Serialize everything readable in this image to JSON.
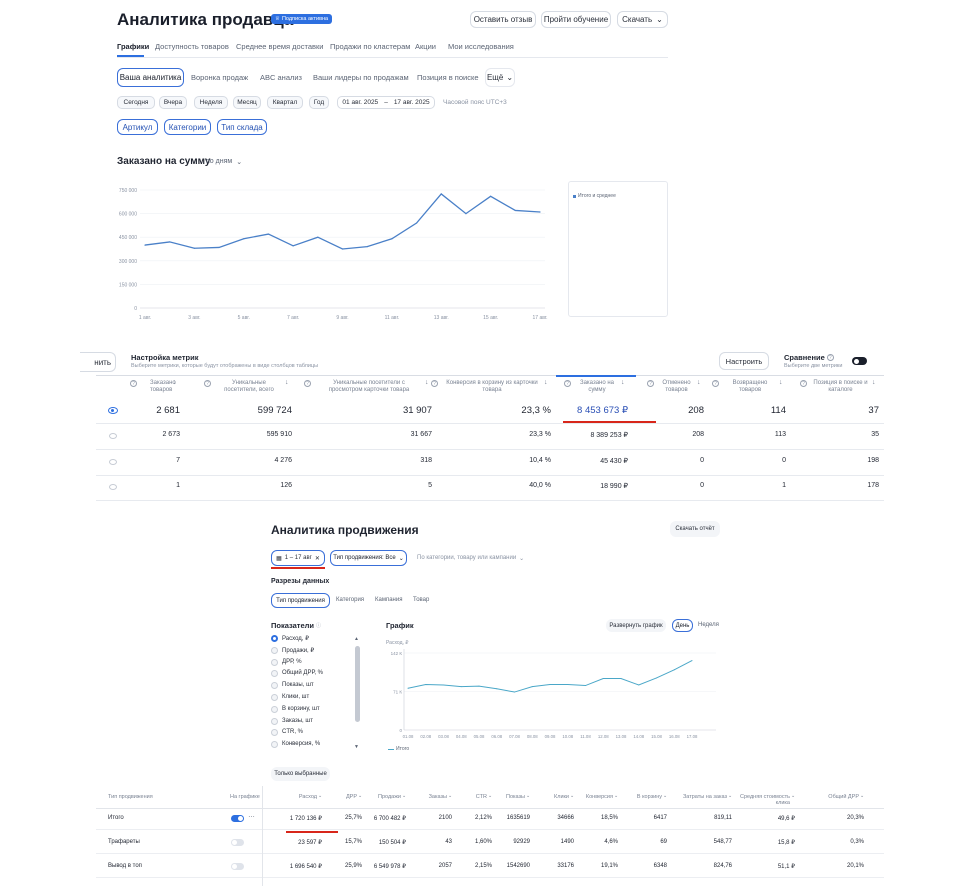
{
  "header": {
    "title": "Аналитика продавца",
    "badge": "Подписка активна",
    "leave_feedback": "Оставить отзыв",
    "take_training": "Пройти обучение",
    "download": "Скачать"
  },
  "top_tabs": [
    "Графики",
    "Доступность товаров",
    "Среднее время доставки",
    "Продажи по кластерам",
    "Акции",
    "Мои исследования"
  ],
  "sub_tabs": [
    "Ваша аналитика",
    "Воронка продаж",
    "ABC анализ",
    "Ваши лидеры по продажам",
    "Позиция в поиске",
    "Ещё"
  ],
  "period_chips": [
    "Сегодня",
    "Вчера",
    "Неделя",
    "Месяц",
    "Квартал",
    "Год"
  ],
  "date_from": "01 авг. 2025",
  "date_to": "17 авг. 2025",
  "timezone": "Часовой пояс UTC+3",
  "filters": [
    "Артикул",
    "Категории",
    "Тип склада"
  ],
  "chart1": {
    "title": "Заказано на сумму",
    "period_select": "по дням",
    "legend": "Итого и среднее"
  },
  "chart_data": [
    {
      "type": "line",
      "title": "Заказано на сумму",
      "x": [
        "1 авг.",
        "2 авг.",
        "3 авг.",
        "4 авг.",
        "5 авг.",
        "6 авг.",
        "7 авг.",
        "8 авг.",
        "9 авг.",
        "10 авг.",
        "11 авг.",
        "12 авг.",
        "13 авг.",
        "14 авг.",
        "15 авг.",
        "16 авг.",
        "17 авг."
      ],
      "x_tick_labels": [
        "1 авг.",
        "3 авг.",
        "5 авг.",
        "7 авг.",
        "9 авг.",
        "11 авг.",
        "13 авг.",
        "15 авг.",
        "17 авг."
      ],
      "y_tick_labels": [
        "0",
        "150 000",
        "300 000",
        "450 000",
        "600 000",
        "750 000"
      ],
      "ylim": [
        0,
        750000
      ],
      "series": [
        {
          "name": "Итого и среднее",
          "values": [
            400000,
            420000,
            380000,
            385000,
            440000,
            470000,
            395000,
            450000,
            375000,
            390000,
            440000,
            540000,
            725000,
            600000,
            710000,
            620000,
            610000
          ]
        }
      ],
      "legend": "top-right"
    },
    {
      "type": "line",
      "title": "График",
      "x": [
        "01.08",
        "02.08",
        "03.08",
        "04.08",
        "05.08",
        "06.08",
        "07.08",
        "08.08",
        "09.08",
        "10.08",
        "11.08",
        "12.08",
        "13.08",
        "14.08",
        "15.08",
        "16.08",
        "17.08"
      ],
      "y_tick_labels": [
        "0",
        "71 К",
        "142 К"
      ],
      "ylim": [
        0,
        142000
      ],
      "ylabel": "Расход, ₽",
      "series": [
        {
          "name": "Итого",
          "values": [
            77000,
            84000,
            83000,
            80000,
            81000,
            76000,
            70000,
            80000,
            84000,
            84000,
            82000,
            95000,
            95000,
            83000,
            96000,
            111000,
            128000
          ]
        }
      ]
    }
  ],
  "metrics_panel": {
    "left_cut": "нить",
    "title": "Настройка метрик",
    "subtitle": "Выберите метрики, которые будут отображены в виде столбцов таблицы",
    "configure": "Настроить",
    "comparison_title": "Сравнение",
    "comparison_sub": "Выберите две метрики"
  },
  "table1": {
    "headers": [
      "Заказано товаров",
      "Уникальные посетители, всего",
      "Уникальные посетители с просмотром карточки товара",
      "Конверсия в корзину из карточки товара",
      "Заказано на сумму",
      "Отменено товаров",
      "Возвращено товаров",
      "Позиция в поиске и каталоге"
    ],
    "rows": [
      [
        "2 681",
        "599 724",
        "31 907",
        "23,3 %",
        "8 453 673 ₽",
        "208",
        "114",
        "37"
      ],
      [
        "2 673",
        "595 910",
        "31 667",
        "23,3 %",
        "8 389 253 ₽",
        "208",
        "113",
        "35"
      ],
      [
        "7",
        "4 276",
        "318",
        "10,4 %",
        "45 430 ₽",
        "0",
        "0",
        "198"
      ],
      [
        "1",
        "126",
        "5",
        "40,0 %",
        "18 990 ₽",
        "0",
        "1",
        "178"
      ]
    ]
  },
  "promo": {
    "title": "Аналитика продвижения",
    "download_report": "Скачать отчёт",
    "date_range": "1 – 17 авг",
    "type_select": "Тип продвижения: Все",
    "search_placeholder": "По категории, товару или кампании",
    "slices_title": "Разрезы данных",
    "slice_tabs": [
      "Тип продвижения",
      "Категория",
      "Кампания",
      "Товар"
    ],
    "indicators_title": "Показатели",
    "indicators": [
      "Расход, ₽",
      "Продажи, ₽",
      "ДРР, %",
      "Общий ДРР, %",
      "Показы, шт",
      "Клики, шт",
      "В корзину, шт",
      "Заказы, шт",
      "CTR, %",
      "Конверсия, %"
    ],
    "only_selected": "Только выбранные",
    "chart_title": "График",
    "expand_chart": "Развернуть график",
    "day": "День",
    "week": "Неделя"
  },
  "promo_table": {
    "col_type": "Тип продвижения",
    "col_on_chart": "На графике",
    "headers": [
      "Расход",
      "ДРР",
      "Продажи",
      "Заказы",
      "CTR",
      "Показы",
      "Клики",
      "Конверсия",
      "В корзину",
      "Затраты на заказ",
      "Средняя стоимость клика",
      "Общий ДРР"
    ],
    "rows": [
      {
        "name": "Итого",
        "on": true,
        "values": [
          "1 720 136 ₽",
          "25,7%",
          "6 700 482 ₽",
          "2100",
          "2,12%",
          "1635619",
          "34666",
          "18,5%",
          "6417",
          "819,11",
          "49,6 ₽",
          "20,3%"
        ]
      },
      {
        "name": "Трафареты",
        "on": false,
        "values": [
          "23 597 ₽",
          "15,7%",
          "150 504 ₽",
          "43",
          "1,60%",
          "92929",
          "1490",
          "4,6%",
          "69",
          "548,77",
          "15,8 ₽",
          "0,3%"
        ]
      },
      {
        "name": "Вывод в топ",
        "on": false,
        "values": [
          "1 696 540 ₽",
          "25,9%",
          "6 549 978 ₽",
          "2057",
          "2,15%",
          "1542690",
          "33176",
          "19,1%",
          "6348",
          "824,76",
          "51,1 ₽",
          "20,1%"
        ]
      }
    ]
  },
  "colors": {
    "accent": "#2d6fe0",
    "line": "#4a80c8",
    "highlight": "#d8261a"
  }
}
